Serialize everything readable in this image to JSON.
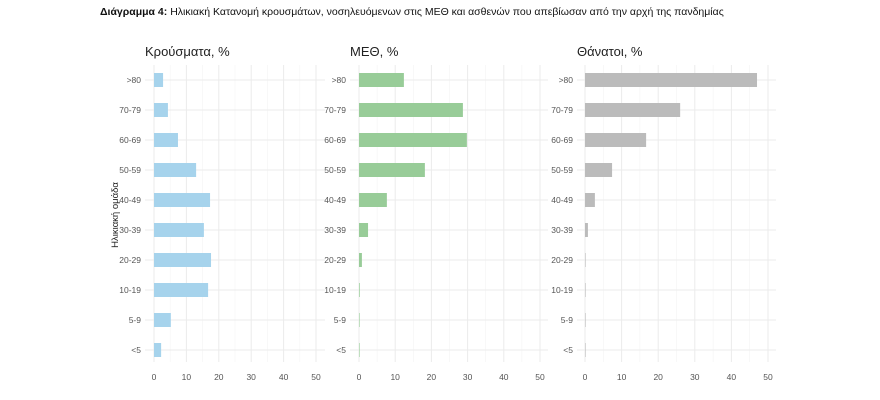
{
  "title_prefix": "Διάγραμμα 4:",
  "title_text": "Ηλικιακή Κατανομή κρουσμάτων, νοσηλευόμενων στις ΜΕΘ και ασθενών που απεβίωσαν από την αρχή της πανδημίας",
  "chart_data": [
    {
      "type": "bar",
      "orientation": "horizontal",
      "title": "Κρούσματα, %",
      "ylabel": "Ηλικιακή ομάδα",
      "color": "#a6d3ec",
      "categories": [
        ">80",
        "70-79",
        "60-69",
        "50-59",
        "40-49",
        "30-39",
        "20-29",
        "10-19",
        "5-9",
        "<5"
      ],
      "values": [
        2.8,
        4.3,
        7.4,
        13.0,
        17.3,
        15.4,
        17.6,
        16.7,
        5.2,
        2.2
      ],
      "xlim": [
        0,
        50
      ],
      "xticks": [
        0,
        10,
        20,
        30,
        40,
        50
      ],
      "grid": true
    },
    {
      "type": "bar",
      "orientation": "horizontal",
      "title": "ΜΕΘ, %",
      "color": "#98cc98",
      "categories": [
        ">80",
        "70-79",
        "60-69",
        "50-59",
        "40-49",
        "30-39",
        "20-29",
        "10-19",
        "5-9",
        "<5"
      ],
      "values": [
        12.4,
        28.7,
        29.8,
        18.2,
        7.7,
        2.5,
        0.8,
        0.2,
        0.1,
        0.1
      ],
      "xlim": [
        0,
        50
      ],
      "xticks": [
        0,
        10,
        20,
        30,
        40,
        50
      ],
      "grid": true
    },
    {
      "type": "bar",
      "orientation": "horizontal",
      "title": "Θάνατοι, %",
      "color": "#bbbbbb",
      "categories": [
        ">80",
        "70-79",
        "60-69",
        "50-59",
        "40-49",
        "30-39",
        "20-29",
        "10-19",
        "5-9",
        "<5"
      ],
      "values": [
        47.0,
        26.0,
        16.7,
        7.4,
        2.7,
        0.8,
        0.1,
        0.1,
        0.1,
        0.1
      ],
      "xlim": [
        0,
        50
      ],
      "xticks": [
        0,
        10,
        20,
        30,
        40,
        50
      ],
      "grid": true
    }
  ]
}
